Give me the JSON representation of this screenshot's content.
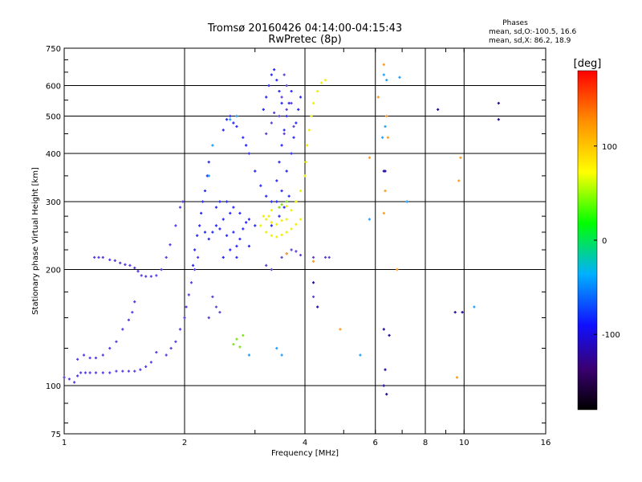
{
  "chart_data": {
    "type": "scatter",
    "title": "Tromsø 20160426 04:14:00-04:15:43",
    "subtitle": "RwPretec (8p)",
    "xlabel": "Frequency [MHz]",
    "ylabel": "Stationary phase Virtual Height [km]",
    "x_scale": "log",
    "y_scale": "log",
    "xlim": [
      1,
      16
    ],
    "ylim": [
      75,
      750
    ],
    "x_ticks": [
      1,
      2,
      4,
      6,
      8,
      10,
      16
    ],
    "y_ticks": [
      75,
      100,
      200,
      300,
      400,
      500,
      600,
      750
    ],
    "grid": true,
    "phases_box": {
      "title": "Phases",
      "line1": "mean, sd,O:-100.5, 16.6",
      "line2": "mean, sd,X: 86.2, 18.9"
    },
    "colorbar": {
      "label": "[deg]",
      "range": [
        -180,
        180
      ],
      "ticks": [
        100,
        0,
        -100
      ],
      "colors": [
        "#000000",
        "#3a0070",
        "#1010ff",
        "#00b0ff",
        "#00ff00",
        "#ffff00",
        "#ff9000",
        "#ff0000"
      ]
    },
    "series": [
      {
        "color": "#5a3ce6",
        "points": [
          [
            1.0,
            105
          ],
          [
            1.03,
            104
          ],
          [
            1.06,
            102
          ],
          [
            1.08,
            106
          ],
          [
            1.1,
            108
          ],
          [
            1.13,
            108
          ],
          [
            1.16,
            108
          ],
          [
            1.2,
            108
          ],
          [
            1.25,
            108
          ],
          [
            1.3,
            108
          ],
          [
            1.35,
            109
          ],
          [
            1.4,
            109
          ],
          [
            1.45,
            109
          ],
          [
            1.5,
            109
          ],
          [
            1.55,
            110
          ],
          [
            1.6,
            112
          ],
          [
            1.65,
            115
          ],
          [
            1.7,
            122
          ],
          [
            1.08,
            117
          ],
          [
            1.12,
            120
          ],
          [
            1.16,
            118
          ],
          [
            1.2,
            118
          ],
          [
            1.25,
            120
          ],
          [
            1.3,
            125
          ],
          [
            1.35,
            130
          ],
          [
            1.4,
            140
          ],
          [
            1.45,
            148
          ],
          [
            1.48,
            155
          ],
          [
            1.5,
            165
          ],
          [
            1.19,
            215
          ],
          [
            1.22,
            215
          ],
          [
            1.25,
            215
          ],
          [
            1.3,
            212
          ],
          [
            1.34,
            211
          ],
          [
            1.38,
            208
          ],
          [
            1.42,
            206
          ],
          [
            1.46,
            205
          ],
          [
            1.5,
            202
          ],
          [
            1.53,
            198
          ],
          [
            1.56,
            193
          ],
          [
            1.6,
            192
          ],
          [
            1.65,
            192
          ],
          [
            1.7,
            193
          ],
          [
            1.75,
            200
          ],
          [
            1.8,
            215
          ],
          [
            1.84,
            232
          ],
          [
            1.9,
            260
          ],
          [
            1.95,
            290
          ],
          [
            1.98,
            300
          ],
          [
            1.8,
            120
          ],
          [
            1.85,
            125
          ],
          [
            1.9,
            130
          ],
          [
            1.95,
            140
          ],
          [
            2.0,
            150
          ],
          [
            2.02,
            160
          ],
          [
            2.05,
            172
          ],
          [
            2.08,
            185
          ],
          [
            2.12,
            200
          ],
          [
            2.16,
            215
          ]
        ]
      },
      {
        "color": "#2a2aff",
        "points": [
          [
            2.1,
            205
          ],
          [
            2.12,
            225
          ],
          [
            2.15,
            245
          ],
          [
            2.18,
            260
          ],
          [
            2.2,
            280
          ],
          [
            2.22,
            300
          ],
          [
            2.25,
            320
          ],
          [
            2.28,
            350
          ],
          [
            2.3,
            380
          ],
          [
            2.25,
            250
          ],
          [
            2.3,
            240
          ],
          [
            2.35,
            250
          ],
          [
            2.4,
            260
          ],
          [
            2.45,
            255
          ],
          [
            2.5,
            270
          ],
          [
            2.55,
            245
          ],
          [
            2.6,
            280
          ],
          [
            2.65,
            250
          ],
          [
            2.7,
            230
          ],
          [
            2.75,
            240
          ],
          [
            2.8,
            255
          ],
          [
            2.85,
            265
          ],
          [
            2.9,
            230
          ],
          [
            2.5,
            215
          ],
          [
            2.6,
            225
          ],
          [
            2.7,
            215
          ],
          [
            2.4,
            290
          ],
          [
            2.45,
            300
          ],
          [
            2.55,
            300
          ],
          [
            2.65,
            290
          ],
          [
            2.75,
            280
          ],
          [
            2.9,
            270
          ],
          [
            3.0,
            260
          ],
          [
            2.5,
            460
          ],
          [
            2.55,
            490
          ],
          [
            2.6,
            500
          ],
          [
            2.65,
            480
          ],
          [
            2.7,
            470
          ],
          [
            2.8,
            440
          ],
          [
            2.85,
            420
          ],
          [
            2.9,
            400
          ],
          [
            3.0,
            360
          ],
          [
            3.1,
            330
          ],
          [
            3.2,
            310
          ],
          [
            3.3,
            300
          ],
          [
            3.4,
            340
          ],
          [
            3.45,
            380
          ],
          [
            3.5,
            420
          ],
          [
            3.55,
            460
          ],
          [
            3.6,
            500
          ],
          [
            3.65,
            540
          ],
          [
            3.7,
            580
          ],
          [
            3.15,
            520
          ],
          [
            3.2,
            560
          ],
          [
            3.25,
            600
          ],
          [
            3.3,
            640
          ],
          [
            3.35,
            660
          ],
          [
            3.4,
            620
          ],
          [
            3.45,
            580
          ],
          [
            3.5,
            540
          ],
          [
            3.4,
            300
          ],
          [
            3.5,
            320
          ],
          [
            3.6,
            360
          ],
          [
            3.7,
            400
          ],
          [
            3.75,
            440
          ],
          [
            3.8,
            480
          ],
          [
            3.85,
            520
          ],
          [
            3.9,
            560
          ],
          [
            3.3,
            260
          ],
          [
            3.45,
            275
          ],
          [
            3.55,
            290
          ],
          [
            3.65,
            310
          ]
        ]
      },
      {
        "color": "#6040d0",
        "points": [
          [
            3.3,
            480
          ],
          [
            3.35,
            510
          ],
          [
            3.5,
            560
          ],
          [
            3.6,
            600
          ],
          [
            3.55,
            640
          ],
          [
            3.2,
            450
          ],
          [
            3.6,
            520
          ],
          [
            3.7,
            540
          ],
          [
            3.45,
            500
          ],
          [
            3.75,
            470
          ],
          [
            3.55,
            450
          ],
          [
            2.4,
            160
          ],
          [
            2.45,
            155
          ],
          [
            2.35,
            170
          ],
          [
            2.3,
            150
          ],
          [
            3.5,
            215
          ],
          [
            3.6,
            220
          ],
          [
            3.7,
            225
          ],
          [
            3.8,
            223
          ],
          [
            3.9,
            218
          ],
          [
            4.2,
            215
          ],
          [
            3.2,
            205
          ],
          [
            3.3,
            200
          ],
          [
            4.2,
            170
          ],
          [
            4.5,
            215
          ],
          [
            4.6,
            215
          ]
        ]
      },
      {
        "color": "#f0f000",
        "points": [
          [
            3.1,
            260
          ],
          [
            3.2,
            270
          ],
          [
            3.3,
            265
          ],
          [
            3.4,
            262
          ],
          [
            3.5,
            268
          ],
          [
            3.6,
            270
          ],
          [
            3.7,
            285
          ],
          [
            3.8,
            300
          ],
          [
            3.9,
            320
          ],
          [
            4.0,
            350
          ],
          [
            4.02,
            380
          ],
          [
            4.05,
            420
          ],
          [
            4.1,
            460
          ],
          [
            4.15,
            500
          ],
          [
            4.2,
            540
          ],
          [
            4.3,
            580
          ],
          [
            4.4,
            610
          ],
          [
            4.5,
            620
          ],
          [
            3.2,
            250
          ],
          [
            3.3,
            245
          ],
          [
            3.4,
            243
          ],
          [
            3.5,
            246
          ],
          [
            3.6,
            250
          ],
          [
            3.7,
            255
          ],
          [
            3.8,
            262
          ],
          [
            3.9,
            270
          ],
          [
            3.3,
            285
          ],
          [
            3.45,
            290
          ],
          [
            3.6,
            292
          ],
          [
            3.25,
            275
          ],
          [
            3.15,
            275
          ]
        ]
      },
      {
        "color": "#80e020",
        "points": [
          [
            2.65,
            128
          ],
          [
            2.7,
            132
          ],
          [
            2.75,
            126
          ],
          [
            2.8,
            135
          ],
          [
            3.45,
            290
          ],
          [
            3.5,
            295
          ],
          [
            3.6,
            300
          ]
        ]
      },
      {
        "color": "#ff9a20",
        "points": [
          [
            3.6,
            220
          ],
          [
            4.2,
            210
          ],
          [
            6.3,
            680
          ],
          [
            6.1,
            560
          ],
          [
            5.8,
            390
          ],
          [
            4.9,
            140
          ],
          [
            6.4,
            500
          ],
          [
            6.45,
            440
          ],
          [
            6.35,
            320
          ],
          [
            6.3,
            280
          ],
          [
            9.6,
            105
          ],
          [
            9.8,
            390
          ],
          [
            9.7,
            340
          ],
          [
            6.8,
            200
          ]
        ]
      },
      {
        "color": "#20a0ff",
        "points": [
          [
            2.3,
            350
          ],
          [
            2.35,
            420
          ],
          [
            2.9,
            120
          ],
          [
            2.6,
            490
          ],
          [
            2.7,
            500
          ],
          [
            6.3,
            640
          ],
          [
            6.35,
            470
          ],
          [
            6.25,
            440
          ],
          [
            5.8,
            270
          ],
          [
            5.5,
            120
          ],
          [
            6.4,
            620
          ],
          [
            6.9,
            630
          ],
          [
            10.6,
            160
          ],
          [
            7.2,
            300
          ],
          [
            3.4,
            125
          ],
          [
            3.5,
            120
          ]
        ]
      },
      {
        "color": "#2010a0",
        "points": [
          [
            6.3,
            140
          ],
          [
            6.5,
            135
          ],
          [
            6.35,
            110
          ],
          [
            6.4,
            95
          ],
          [
            6.3,
            100
          ],
          [
            8.6,
            520
          ],
          [
            12.2,
            490
          ],
          [
            12.2,
            540
          ],
          [
            9.5,
            155
          ],
          [
            9.9,
            155
          ],
          [
            4.3,
            160
          ],
          [
            4.2,
            185
          ],
          [
            6.3,
            360
          ],
          [
            6.35,
            360
          ]
        ]
      }
    ]
  }
}
